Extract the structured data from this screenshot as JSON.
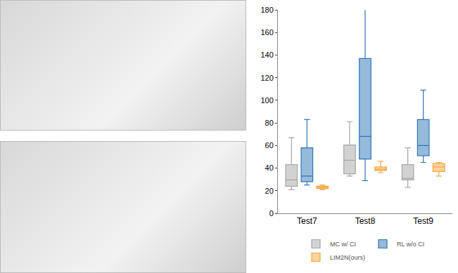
{
  "chart_data": {
    "type": "box",
    "categories": [
      "Test7",
      "Test8",
      "Test9"
    ],
    "series": [
      {
        "name": "MC w/ CI",
        "color": "#a6a6a6",
        "min": [
          21,
          33,
          23
        ],
        "q1": [
          24,
          35,
          29.5
        ],
        "median": [
          29.5,
          47,
          31
        ],
        "q3": [
          43,
          60.5,
          43
        ],
        "max": [
          67,
          81,
          58
        ]
      },
      {
        "name": "RL w/o CI",
        "color": "#2e75b6",
        "min": [
          25,
          29,
          45
        ],
        "q1": [
          28,
          48,
          51
        ],
        "median": [
          33,
          68,
          60
        ],
        "q3": [
          58,
          137,
          83
        ],
        "max": [
          83,
          181,
          109
        ]
      },
      {
        "name": "LIM2N(ours)",
        "color": "#f4a640",
        "min": [
          21,
          36,
          33
        ],
        "q1": [
          22,
          38,
          37
        ],
        "median": [
          23,
          39,
          41
        ],
        "q3": [
          24,
          41,
          44
        ],
        "max": [
          25,
          46,
          45
        ]
      }
    ],
    "ylim": [
      0,
      180
    ],
    "yticks": [
      0,
      20,
      40,
      60,
      80,
      100,
      120,
      140,
      160,
      180
    ],
    "grid": false,
    "legend": "bottom"
  }
}
